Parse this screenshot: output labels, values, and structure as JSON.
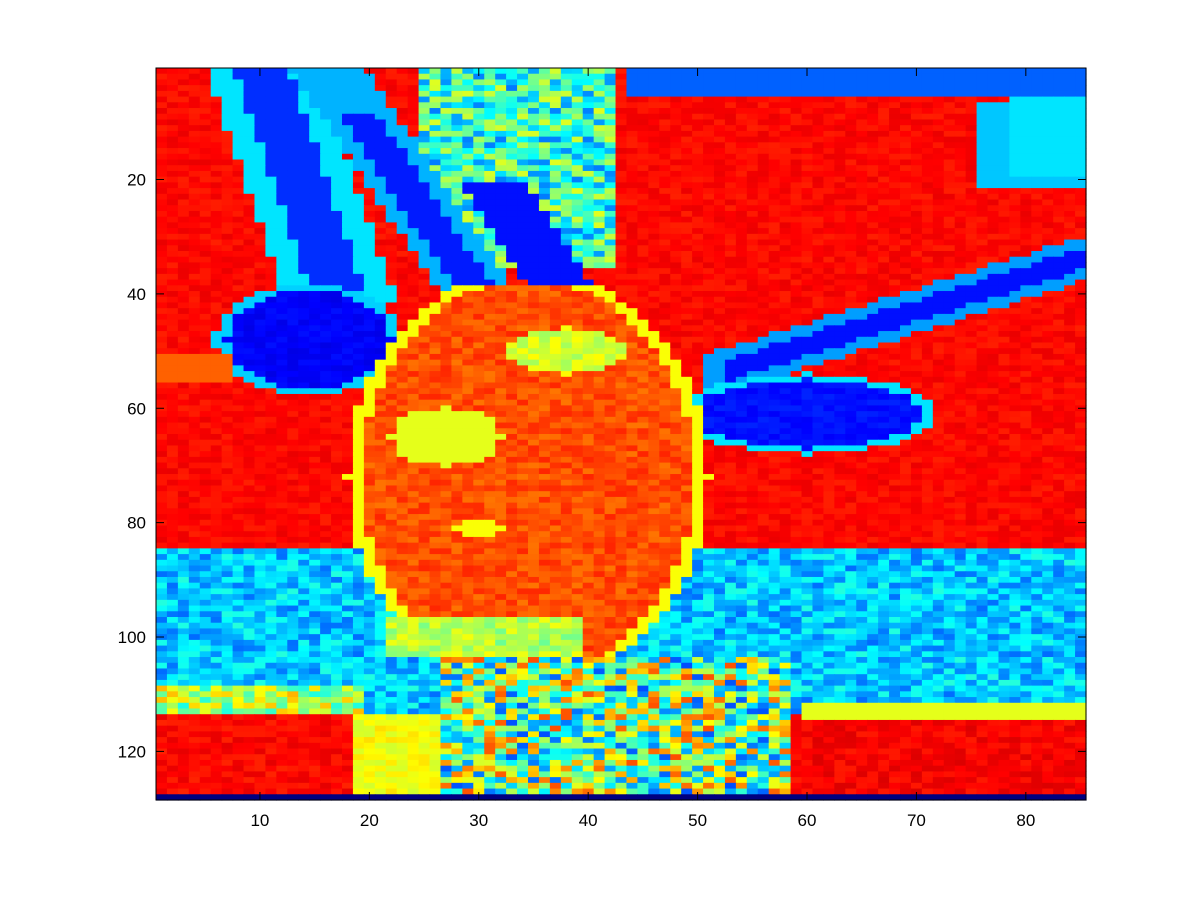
{
  "chart_data": {
    "type": "heatmap",
    "title": "",
    "xlabel": "",
    "ylabel": "",
    "colormap": "jet",
    "grid": false,
    "legend": "none",
    "image_size": {
      "columns": 85,
      "rows": 128
    },
    "xlim": [
      0.5,
      85.5
    ],
    "ylim": [
      0.5,
      128.5
    ],
    "y_direction": "reverse",
    "x_ticks": [
      10,
      20,
      30,
      40,
      50,
      60,
      70,
      80
    ],
    "y_ticks": [
      20,
      40,
      60,
      80,
      100,
      120
    ],
    "x_tick_labels": [
      "10",
      "20",
      "30",
      "40",
      "50",
      "60",
      "70",
      "80"
    ],
    "y_tick_labels": [
      "20",
      "40",
      "60",
      "80",
      "100",
      "120"
    ],
    "colors": {
      "dark_blue": "#00008f",
      "blue": "#0040ff",
      "cyan": "#00ffff",
      "yellow": "#ffff00",
      "orange": "#ff8000",
      "red": "#ff3000"
    },
    "regions": [
      {
        "name": "background-warm",
        "value": 0.87
      },
      {
        "name": "top-left-stripe-cyan",
        "value": 0.35,
        "columns": [
          8,
          20
        ],
        "rows": [
          1,
          40
        ]
      },
      {
        "name": "top-left-stripe-blue",
        "value": 0.18,
        "columns": [
          10,
          18
        ],
        "rows": [
          1,
          40
        ]
      },
      {
        "name": "top-center-texture",
        "value": 0.45,
        "columns": [
          24,
          43
        ],
        "rows": [
          1,
          38
        ]
      },
      {
        "name": "top-right-stripe",
        "value": 0.25,
        "columns": [
          43,
          85
        ],
        "rows": [
          1,
          22
        ]
      },
      {
        "name": "right-diagonal-band",
        "value": 0.15,
        "columns": [
          50,
          85
        ],
        "rows": [
          32,
          58
        ]
      },
      {
        "name": "left-dark-ear",
        "value": 0.12,
        "columns": [
          7,
          22
        ],
        "rows": [
          40,
          58
        ]
      },
      {
        "name": "right-dark-ear",
        "value": 0.12,
        "columns": [
          51,
          71
        ],
        "rows": [
          53,
          69
        ]
      },
      {
        "name": "head",
        "value": 0.8,
        "columns": [
          17,
          52
        ],
        "rows": [
          38,
          112
        ]
      },
      {
        "name": "lower-cyan-band",
        "value": 0.33,
        "columns": [
          1,
          85
        ],
        "rows": [
          84,
          114
        ]
      },
      {
        "name": "lower-center-noisy",
        "value": 0.5,
        "columns": [
          26,
          60
        ],
        "rows": [
          104,
          128
        ]
      },
      {
        "name": "bottom-left-warm",
        "value": 0.88,
        "columns": [
          1,
          19
        ],
        "rows": [
          114,
          127
        ]
      },
      {
        "name": "bottom-right-warm",
        "value": 0.88,
        "columns": [
          59,
          85
        ],
        "rows": [
          114,
          127
        ]
      },
      {
        "name": "bottom-row",
        "value": 0.0,
        "columns": [
          1,
          85
        ],
        "rows": [
          128,
          128
        ]
      }
    ]
  }
}
